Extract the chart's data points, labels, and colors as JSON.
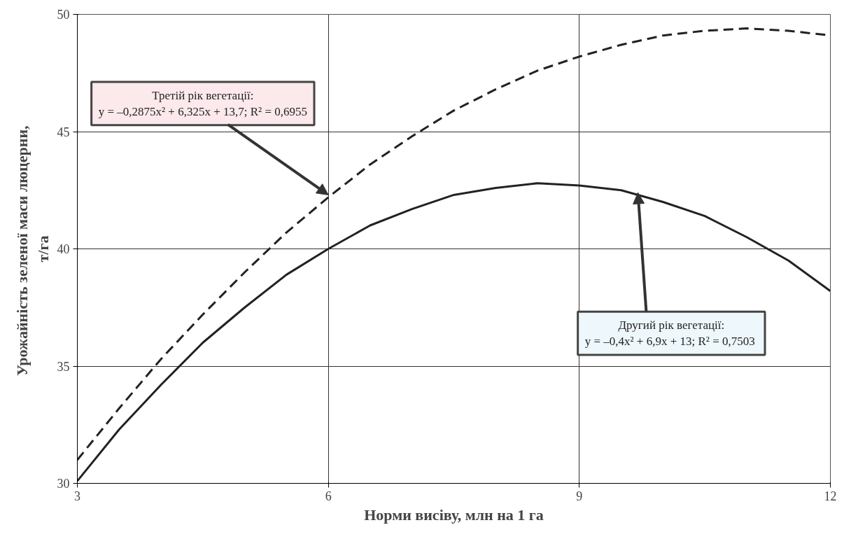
{
  "chart_data": {
    "type": "line",
    "xlabel": "Норми висіву, млн на 1 га",
    "ylabel": "Урожайність  зеленої маси люцерни,\nт/га",
    "x": [
      3,
      3.5,
      4,
      4.5,
      5,
      5.5,
      6,
      6.5,
      7,
      7.5,
      8,
      8.5,
      9,
      9.5,
      10,
      10.5,
      11,
      11.5,
      12
    ],
    "series": [
      {
        "color": "#222222",
        "line_style": "dashed",
        "values": [
          31.0,
          33.2,
          35.3,
          37.2,
          39.0,
          40.7,
          42.2,
          43.6,
          44.8,
          45.9,
          46.8,
          47.6,
          48.2,
          48.7,
          49.1,
          49.3,
          49.4,
          49.3,
          49.1
        ]
      },
      {
        "color": "#222222",
        "line_style": "solid",
        "values": [
          30.1,
          32.3,
          34.2,
          36.0,
          37.5,
          38.9,
          40.0,
          41.0,
          41.7,
          42.3,
          42.6,
          42.8,
          42.7,
          42.5,
          42.0,
          41.4,
          40.5,
          39.5,
          38.2
        ]
      }
    ],
    "xlim": [
      3,
      12
    ],
    "ylim": [
      30,
      50
    ],
    "xticks": [
      3,
      6,
      9,
      12
    ],
    "yticks": [
      30,
      35,
      40,
      45,
      50
    ],
    "grid": true,
    "marker": "none",
    "annotations": [
      {
        "text": "Третій рік вегетації:\ny = –0,2875x² + 6,325x + 13,7; R² = 0,6955",
        "x": 6.0,
        "y": 42.3
      },
      {
        "text": "Другий рік вегетації:\ny = –0,4x² + 6,9x + 13;  R² = 0,7503",
        "x": 9.7,
        "y": 42.4
      }
    ]
  }
}
